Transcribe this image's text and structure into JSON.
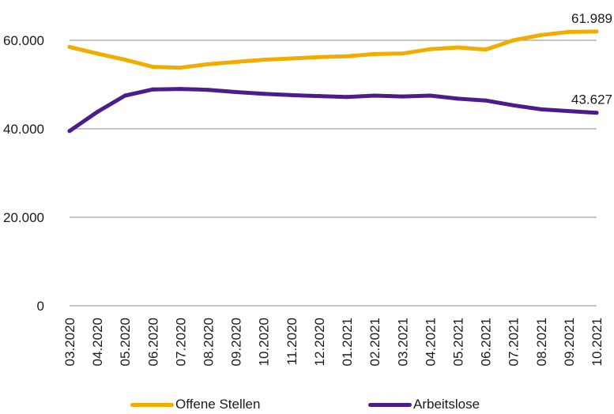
{
  "chart_data": {
    "type": "line",
    "categories": [
      "03.2020",
      "04.2020",
      "05.2020",
      "06.2020",
      "07.2020",
      "08.2020",
      "09.2020",
      "10.2020",
      "11.2020",
      "12.2020",
      "01.2021",
      "02.2021",
      "03.2021",
      "04.2021",
      "05.2021",
      "06.2021",
      "07.2021",
      "08.2021",
      "09.2021",
      "10.2021"
    ],
    "ylim": [
      0,
      70000
    ],
    "yticks": [
      {
        "value": 0,
        "label": "0"
      },
      {
        "value": 20000,
        "label": "20.000"
      },
      {
        "value": 40000,
        "label": "40.000"
      },
      {
        "value": 60000,
        "label": "60.000"
      }
    ],
    "grid": true,
    "legend": "bottom",
    "series": [
      {
        "name": "Offene Stellen",
        "color": "#f0ad00",
        "values": [
          58500,
          57000,
          55600,
          54000,
          53800,
          54600,
          55100,
          55600,
          55900,
          56200,
          56400,
          56900,
          57000,
          58000,
          58400,
          57900,
          60000,
          61200,
          61900,
          61989
        ],
        "end_label": "61.989"
      },
      {
        "name": "Arbeitslose",
        "color": "#4b1d8c",
        "values": [
          39500,
          43800,
          47500,
          48900,
          49000,
          48800,
          48300,
          47900,
          47600,
          47400,
          47200,
          47500,
          47300,
          47500,
          46800,
          46400,
          45300,
          44400,
          44000,
          43627
        ],
        "end_label": "43.627"
      }
    ]
  }
}
